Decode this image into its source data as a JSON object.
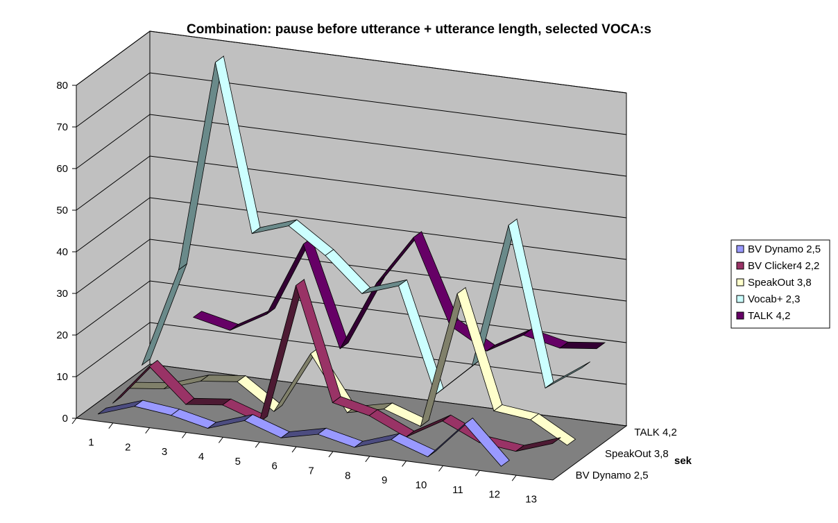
{
  "chart_data": {
    "type": "line",
    "subtype": "3d-ribbon",
    "title": "Combination: pause before utterance + utterance length, selected VOCA:s",
    "xlabel": "",
    "ylabel": "",
    "zlabel": "sek",
    "categories": [
      "1",
      "2",
      "3",
      "4",
      "5",
      "6",
      "7",
      "8",
      "9",
      "10",
      "11",
      "12",
      "13"
    ],
    "depth_tick_labels": [
      "BV Dynamo 2,5",
      "SpeakOut 3,8",
      "TALK 4,2"
    ],
    "y_ticks": [
      0,
      10,
      20,
      30,
      40,
      50,
      60,
      70,
      80
    ],
    "ylim": [
      0,
      80
    ],
    "grid": true,
    "legend_position": "right",
    "series": [
      {
        "name": "BV Dynamo 2,5",
        "color": "#9999ff",
        "values": [
          1,
          4,
          3,
          1,
          4,
          1,
          3,
          1,
          4,
          1,
          10,
          1,
          null
        ]
      },
      {
        "name": "BV Clicker4 2,2",
        "color": "#993366",
        "values": [
          1,
          11,
          3,
          4,
          1,
          35,
          8,
          6,
          2,
          7,
          3,
          2,
          5
        ]
      },
      {
        "name": "SpeakOut 3,8",
        "color": "#ffffcc",
        "values": [
          2,
          3,
          6,
          7,
          1,
          16,
          3,
          5,
          2,
          35,
          8,
          7,
          2
        ]
      },
      {
        "name": "Vocab+ 2,3",
        "color": "#ccffff",
        "values": [
          5,
          29,
          80,
          40,
          43,
          37,
          29,
          32,
          7,
          15,
          50,
          12,
          18
        ]
      },
      {
        "name": "TALK 4,2",
        "color": "#660066",
        "values": [
          null,
          15,
          13,
          18,
          36,
          12,
          29,
          41,
          21,
          16,
          21,
          19,
          20
        ]
      }
    ],
    "series_side_colors": [
      "#4c4c80",
      "#4d1a33",
      "#80806a",
      "#6a8a8a",
      "#330033"
    ],
    "wall_color": "#c0c0c0",
    "floor_color": "#808080"
  }
}
